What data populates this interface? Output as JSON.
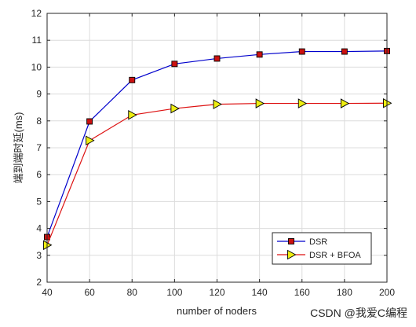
{
  "chart_data": {
    "type": "line",
    "title": "",
    "xlabel": "number of noders",
    "ylabel": "端到端时延(ms)",
    "x": [
      40,
      60,
      80,
      100,
      120,
      140,
      160,
      180,
      200
    ],
    "xlim": [
      40,
      200
    ],
    "ylim": [
      2,
      12
    ],
    "xticks": [
      40,
      60,
      80,
      100,
      120,
      140,
      160,
      180,
      200
    ],
    "yticks": [
      2,
      3,
      4,
      5,
      6,
      7,
      8,
      9,
      10,
      11,
      12
    ],
    "grid": true,
    "legend_position": "bottom-right",
    "series": [
      {
        "name": "DSR",
        "color": "#0000cc",
        "marker": "square",
        "marker_color": "#cc1111",
        "values": [
          3.68,
          7.98,
          9.52,
          10.12,
          10.32,
          10.47,
          10.58,
          10.58,
          10.6
        ]
      },
      {
        "name": "DSR + BFOA",
        "color": "#dd1111",
        "marker": "triangle-right",
        "marker_color": "#eeee11",
        "values": [
          3.38,
          7.27,
          8.22,
          8.46,
          8.62,
          8.65,
          8.65,
          8.65,
          8.66
        ]
      }
    ]
  },
  "watermark": "CSDN @我爱C编程"
}
